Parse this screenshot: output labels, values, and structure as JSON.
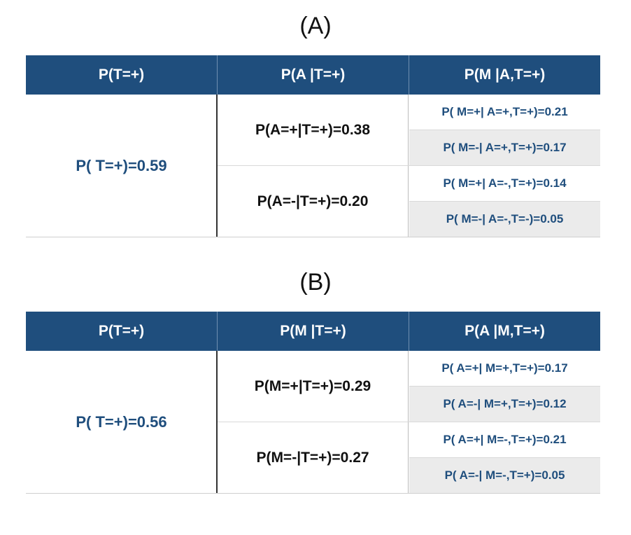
{
  "tables": [
    {
      "label": "(A)",
      "headers": [
        "P(T=+)",
        "P(A |T=+)",
        "P(M |A,T=+)"
      ],
      "col1": "P( T=+)=0.59",
      "col2": [
        "P(A=+|T=+)=0.38",
        "P(A=-|T=+)=0.20"
      ],
      "col3": [
        "P( M=+| A=+,T=+)=0.21",
        "P( M=-| A=+,T=+)=0.17",
        "P( M=+| A=-,T=+)=0.14",
        "P( M=-| A=-,T=-)=0.05"
      ]
    },
    {
      "label": "(B)",
      "headers": [
        "P(T=+)",
        "P(M |T=+)",
        "P(A |M,T=+)"
      ],
      "col1": "P( T=+)=0.56",
      "col2": [
        "P(M=+|T=+)=0.29",
        "P(M=-|T=+)=0.27"
      ],
      "col3": [
        "P( A=+| M=+,T=+)=0.17",
        "P( A=-| M=+,T=+)=0.12",
        "P( A=+| M=-,T=+)=0.21",
        "P( A=-| M=-,T=+)=0.05"
      ]
    }
  ],
  "colors": {
    "header_bg": "#1f4e7d",
    "header_text": "#ffffff",
    "accent_text": "#1f4e7d",
    "shade": "#ebebeb"
  }
}
